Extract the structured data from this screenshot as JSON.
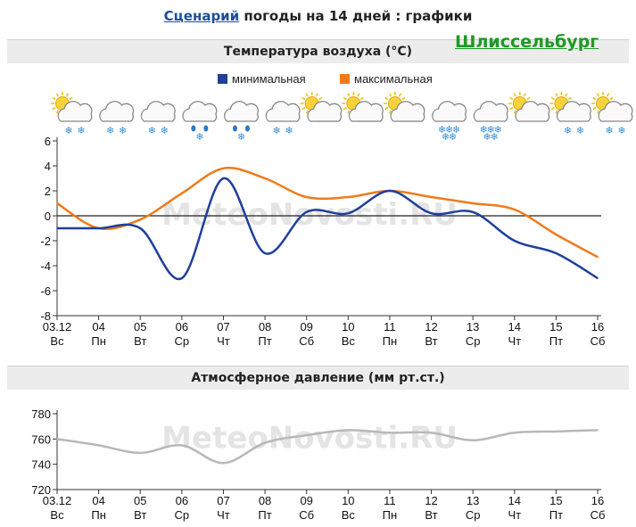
{
  "header": {
    "link_text": "Сценарий",
    "rest_text": " погоды на 14 дней : графики"
  },
  "city": "Шлиссельбург",
  "watermark": "MeteoNovosti.RU",
  "icons": [
    "partly-cloudy-snow-icon",
    "cloud-snow-icon",
    "cloud-snow-icon",
    "cloud-sleet-icon",
    "cloud-sleet-icon",
    "cloud-snow-icon",
    "partly-cloudy-icon",
    "partly-cloudy-icon",
    "partly-cloudy-icon",
    "cloud-heavy-snow-icon",
    "cloud-heavy-snow-icon",
    "sun-cloud-icon",
    "partly-cloudy-snow-icon",
    "partly-cloudy-snow-icon"
  ],
  "colors": {
    "min": "#1f3f9a",
    "max": "#f07a1a",
    "pressure": "#b8b8b8"
  },
  "chart_data": [
    {
      "type": "line",
      "title": "Температура воздуха (°C)",
      "categories": [
        "03.12",
        "04",
        "05",
        "06",
        "07",
        "08",
        "09",
        "10",
        "11",
        "12",
        "13",
        "14",
        "15",
        "16"
      ],
      "weekdays": [
        "Вс",
        "Пн",
        "Вт",
        "Ср",
        "Чт",
        "Пт",
        "Сб",
        "Вс",
        "Пн",
        "Вт",
        "Ср",
        "Чт",
        "Пт",
        "Сб"
      ],
      "series": [
        {
          "name": "минимальная",
          "values": [
            -1,
            -1,
            -1,
            -5,
            3,
            -3,
            0.3,
            0.2,
            2,
            0.2,
            0.3,
            -2,
            -3,
            -5
          ]
        },
        {
          "name": "максимальная",
          "values": [
            1,
            -1,
            -0.3,
            1.8,
            3.8,
            3,
            1.5,
            1.5,
            2,
            1.5,
            1,
            0.5,
            -1.5,
            -3.3
          ]
        }
      ],
      "ylim": [
        -8,
        6
      ],
      "yticks": [
        "6",
        "4",
        "2",
        "0",
        "-2",
        "-4",
        "-6",
        "-8"
      ],
      "grid": false,
      "legend": "top"
    },
    {
      "type": "line",
      "title": "Атмосферное давление (мм рт.ст.)",
      "categories": [
        "03.12",
        "04",
        "05",
        "06",
        "07",
        "08",
        "09",
        "10",
        "11",
        "12",
        "13",
        "14",
        "15",
        "16"
      ],
      "weekdays": [
        "Вс",
        "Пн",
        "Вт",
        "Ср",
        "Чт",
        "Пт",
        "Сб",
        "Вс",
        "Пн",
        "Вт",
        "Ср",
        "Чт",
        "Пт",
        "Сб"
      ],
      "series": [
        {
          "values": [
            760,
            755,
            749,
            755,
            741,
            757,
            763,
            767,
            765,
            765,
            759,
            765,
            766,
            767
          ]
        }
      ],
      "ylim": [
        720,
        780
      ],
      "yticks": [
        "780",
        "760",
        "740",
        "720"
      ],
      "grid": false
    }
  ]
}
